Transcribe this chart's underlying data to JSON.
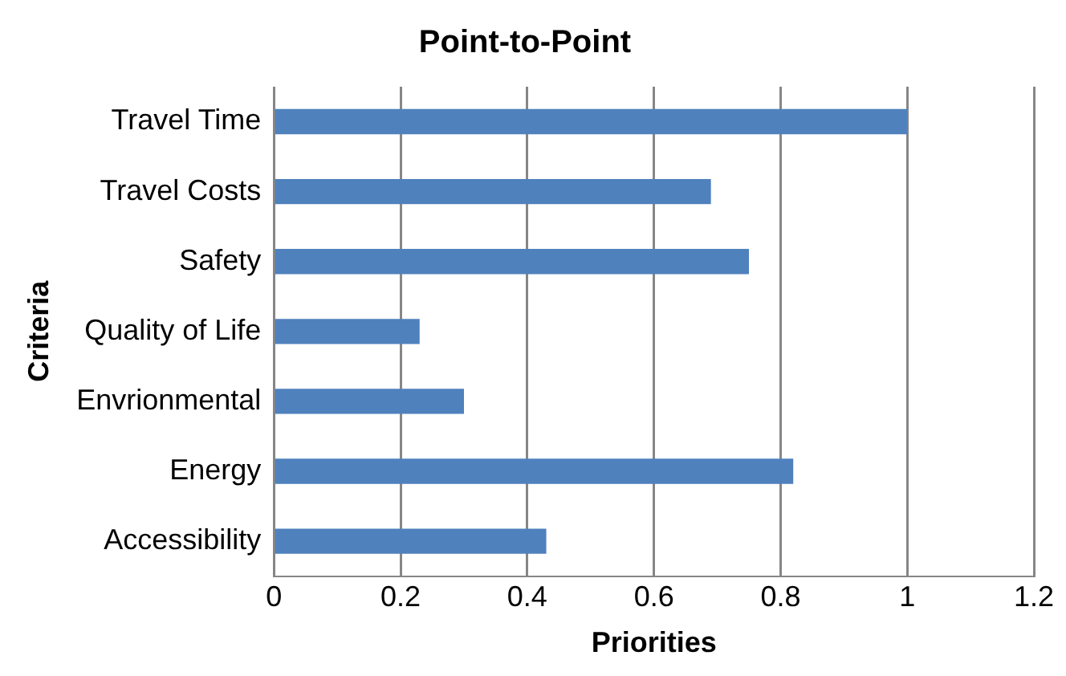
{
  "chart_data": {
    "type": "bar",
    "orientation": "horizontal",
    "title": "Point-to-Point",
    "xlabel": "Priorities",
    "ylabel": "Criteria",
    "categories": [
      "Travel Time",
      "Travel Costs",
      "Safety",
      "Quality of Life",
      "Envrionmental",
      "Energy",
      "Accessibility"
    ],
    "values": [
      1.0,
      0.69,
      0.75,
      0.23,
      0.3,
      0.82,
      0.43
    ],
    "color": "#4f81bd",
    "xlim": [
      0,
      1.2
    ],
    "xticks": [
      0,
      0.2,
      0.4,
      0.6,
      0.8,
      1,
      1.2
    ],
    "grid": "x",
    "legend": false
  }
}
